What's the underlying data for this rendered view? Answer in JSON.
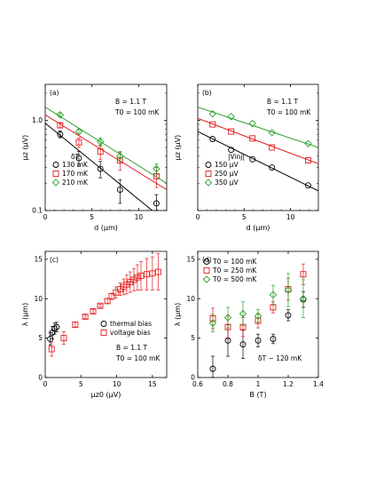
{
  "colors": {
    "black": "#000000",
    "red": "#e41a1c",
    "green": "#2ca02c"
  },
  "chart_data": [
    {
      "id": "a",
      "type": "scatter",
      "panel_label": "(a)",
      "xlabel": "d (µm)",
      "ylabel": "μz (µV)",
      "xlim": [
        0,
        13
      ],
      "ylim": [
        0.1,
        2.5
      ],
      "yscale": "log",
      "xticks": [
        0,
        5,
        10
      ],
      "yticks": [
        {
          "v": 0.1,
          "label": "0.1"
        },
        {
          "v": 1,
          "label": "1.0"
        }
      ],
      "annotations": [
        "B = 1.1 T",
        "T0 = 100 mK"
      ],
      "legend_title": "δT",
      "legend_position": "bottom-left",
      "series": [
        {
          "name": "130 mK",
          "marker": "circle",
          "color": "#000000",
          "x": [
            1.6,
            3.6,
            5.9,
            8.0,
            11.9
          ],
          "y": [
            0.7,
            0.38,
            0.29,
            0.17,
            0.12
          ],
          "err": [
            0.06,
            0.07,
            0.06,
            0.05,
            0.03
          ],
          "fit": {
            "x": [
              0,
              13
            ],
            "y": [
              0.93,
              0.074
            ]
          }
        },
        {
          "name": "170 mK",
          "marker": "square",
          "color": "#e41a1c",
          "x": [
            1.6,
            3.6,
            5.9,
            8.0,
            11.9
          ],
          "y": [
            0.88,
            0.57,
            0.45,
            0.36,
            0.24
          ],
          "err": [
            0.05,
            0.07,
            0.08,
            0.08,
            0.06
          ],
          "fit": {
            "x": [
              0,
              13
            ],
            "y": [
              1.15,
              0.17
            ]
          }
        },
        {
          "name": "210 mK",
          "marker": "diamond",
          "color": "#2ca02c",
          "x": [
            1.6,
            3.6,
            5.9,
            8.0,
            11.9
          ],
          "y": [
            1.15,
            0.75,
            0.58,
            0.4,
            0.29
          ],
          "err": [
            0.04,
            0.05,
            0.06,
            0.05,
            0.04
          ],
          "fit": {
            "x": [
              0,
              13
            ],
            "y": [
              1.4,
              0.2
            ]
          }
        }
      ]
    },
    {
      "id": "b",
      "type": "scatter",
      "panel_label": "(b)",
      "xlabel": "d (µm)",
      "ylabel": "μz (µV)",
      "xlim": [
        0,
        13
      ],
      "ylim": [
        0.1,
        2.5
      ],
      "yscale": "log",
      "xticks": [
        0,
        5,
        10
      ],
      "yticks": [
        {
          "v": 0.1,
          "label": ""
        },
        {
          "v": 1,
          "label": ""
        }
      ],
      "annotations": [
        "B = 1.1 T",
        "T0 = 100 mK"
      ],
      "legend_title": "|Vinj|",
      "legend_position": "bottom-left",
      "series": [
        {
          "name": "150 µV",
          "marker": "circle",
          "color": "#000000",
          "x": [
            1.6,
            3.6,
            5.9,
            8.0,
            11.9
          ],
          "y": [
            0.62,
            0.47,
            0.37,
            0.3,
            0.19
          ],
          "err": [
            0.0,
            0.0,
            0.0,
            0.0,
            0.0
          ],
          "fit": {
            "x": [
              0,
              13
            ],
            "y": [
              0.75,
              0.165
            ]
          }
        },
        {
          "name": "250 µV",
          "marker": "square",
          "color": "#e41a1c",
          "x": [
            1.6,
            3.6,
            5.9,
            8.0,
            11.9
          ],
          "y": [
            0.9,
            0.75,
            0.63,
            0.5,
            0.36
          ],
          "err": [
            0.0,
            0.0,
            0.0,
            0.0,
            0.0
          ],
          "fit": {
            "x": [
              0,
              13
            ],
            "y": [
              1.05,
              0.33
            ]
          }
        },
        {
          "name": "350 µV",
          "marker": "diamond",
          "color": "#2ca02c",
          "x": [
            1.6,
            3.6,
            5.9,
            8.0,
            11.9
          ],
          "y": [
            1.18,
            1.1,
            0.92,
            0.73,
            0.55
          ],
          "err": [
            0.0,
            0.0,
            0.0,
            0.0,
            0.0
          ],
          "fit": {
            "x": [
              0,
              13
            ],
            "y": [
              1.4,
              0.5
            ]
          }
        }
      ]
    },
    {
      "id": "c",
      "type": "scatter",
      "panel_label": "(c)",
      "xlabel": "μz0 (µV)",
      "ylabel": "λ (µm)",
      "xlim": [
        0,
        17
      ],
      "ylim": [
        0,
        16
      ],
      "yscale": "linear",
      "xticks": [
        0,
        5,
        10,
        15
      ],
      "yticks": [
        {
          "v": 0,
          "label": "0"
        },
        {
          "v": 5,
          "label": "5"
        },
        {
          "v": 10,
          "label": "10"
        },
        {
          "v": 15,
          "label": "15"
        }
      ],
      "annotations": [
        "B = 1.1 T",
        "T0 = 100 mK"
      ],
      "legend_position": "bottom-right",
      "series": [
        {
          "name": "thermal bias",
          "marker": "circle",
          "color": "#000000",
          "x": [
            0.7,
            1.0,
            1.3,
            1.6
          ],
          "y": [
            4.9,
            5.7,
            6.2,
            6.4
          ],
          "err": [
            0.8,
            0.8,
            0.7,
            0.6
          ]
        },
        {
          "name": "voltage bias",
          "marker": "square",
          "color": "#e41a1c",
          "x": [
            0.9,
            2.6,
            4.2,
            5.6,
            6.7,
            7.7,
            8.7,
            9.3,
            9.9,
            10.5,
            11.0,
            11.4,
            11.9,
            12.4,
            12.9,
            13.4,
            14.2,
            15.0,
            15.8
          ],
          "y": [
            3.6,
            5.0,
            6.7,
            7.7,
            8.4,
            9.1,
            9.7,
            10.3,
            10.8,
            11.2,
            11.5,
            11.8,
            12.1,
            12.4,
            12.7,
            12.9,
            13.1,
            13.2,
            13.4
          ],
          "err": [
            0.9,
            0.8,
            0.3,
            0.2,
            0.2,
            0.2,
            0.3,
            0.4,
            0.7,
            0.8,
            1.0,
            1.2,
            1.3,
            1.4,
            1.6,
            1.8,
            2.0,
            2.1,
            2.3
          ]
        }
      ]
    },
    {
      "id": "d",
      "type": "scatter",
      "panel_label": "(d)",
      "xlabel": "B (T)",
      "ylabel": "λ (µm)",
      "xlim": [
        0.6,
        1.4
      ],
      "ylim": [
        0,
        16
      ],
      "yscale": "linear",
      "xticks": [
        0.6,
        0.8,
        1.0,
        1.2,
        1.4
      ],
      "yticks": [
        {
          "v": 0,
          "label": "0"
        },
        {
          "v": 5,
          "label": "5"
        },
        {
          "v": 10,
          "label": "10"
        },
        {
          "v": 15,
          "label": "15"
        }
      ],
      "annotations": [
        "δT ~ 120 mK"
      ],
      "legend_position": "top-left",
      "series": [
        {
          "name": "T0 = 100 mK",
          "marker": "circle",
          "color": "#000000",
          "x": [
            0.7,
            0.8,
            0.9,
            1.0,
            1.1,
            1.2,
            1.3
          ],
          "y": [
            1.1,
            4.7,
            4.2,
            4.7,
            4.9,
            7.9,
            9.9
          ],
          "err": [
            1.6,
            2.0,
            1.8,
            0.8,
            0.6,
            0.7,
            1.0
          ]
        },
        {
          "name": "T0 = 250 mK",
          "marker": "square",
          "color": "#e41a1c",
          "x": [
            0.7,
            0.8,
            0.9,
            1.0,
            1.1,
            1.2,
            1.3
          ],
          "y": [
            7.5,
            6.4,
            6.4,
            7.2,
            8.9,
            11.2,
            13.1
          ],
          "err": [
            1.3,
            1.5,
            1.2,
            0.9,
            0.7,
            1.4,
            1.3
          ]
        },
        {
          "name": "T0 = 500 mK",
          "marker": "diamond",
          "color": "#2ca02c",
          "x": [
            0.7,
            0.8,
            0.9,
            1.0,
            1.1,
            1.2,
            1.3
          ],
          "y": [
            6.9,
            7.6,
            8.1,
            7.8,
            10.5,
            11.1,
            10.0
          ],
          "err": [
            1.1,
            1.3,
            1.5,
            0.8,
            1.2,
            2.1,
            2.4
          ]
        }
      ]
    }
  ]
}
